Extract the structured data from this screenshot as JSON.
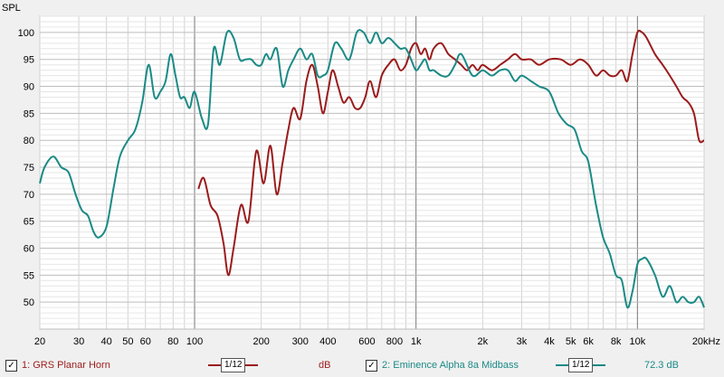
{
  "chart_data": {
    "type": "line",
    "ylabel": "SPL",
    "xscale": "log",
    "xlim": [
      20,
      20000
    ],
    "ylim": [
      45,
      103
    ],
    "grid": true,
    "yticks": [
      50,
      55,
      60,
      65,
      70,
      75,
      80,
      85,
      90,
      95,
      100
    ],
    "xticks": [
      20,
      30,
      40,
      50,
      60,
      80,
      100,
      200,
      300,
      400,
      600,
      800,
      1000,
      2000,
      3000,
      4000,
      5000,
      6000,
      8000,
      10000,
      20000
    ],
    "xtick_labels": [
      "20",
      "30",
      "40",
      "50",
      "60",
      "80",
      "100",
      "200",
      "300",
      "400",
      "600",
      "800",
      "1k",
      "2k",
      "3k",
      "4k",
      "5k",
      "6k",
      "8k",
      "10k",
      "20kHz"
    ],
    "series": [
      {
        "name": "1: GRS Planar Horn",
        "color": "#9b1b1b",
        "x": [
          104,
          110,
          118,
          127,
          135,
          142,
          150,
          162,
          175,
          190,
          205,
          220,
          235,
          250,
          265,
          280,
          300,
          320,
          340,
          360,
          380,
          400,
          420,
          445,
          470,
          500,
          530,
          560,
          590,
          620,
          660,
          700,
          750,
          800,
          850,
          900,
          950,
          1000,
          1050,
          1100,
          1150,
          1200,
          1300,
          1400,
          1500,
          1600,
          1700,
          1800,
          1900,
          2000,
          2200,
          2400,
          2600,
          2800,
          3000,
          3300,
          3600,
          4000,
          4500,
          5000,
          5500,
          6000,
          6500,
          7000,
          7500,
          8000,
          8500,
          9000,
          9500,
          10000,
          10500,
          11000,
          12000,
          13000,
          14000,
          15000,
          16000,
          17000,
          18000,
          19000,
          20000
        ],
        "y": [
          71,
          73,
          68,
          66,
          61,
          55,
          60,
          68,
          65,
          78,
          72,
          79,
          70,
          76,
          82,
          86,
          84,
          91,
          94,
          90,
          85,
          89,
          93,
          90,
          87,
          88,
          86,
          86,
          88,
          91,
          88,
          92,
          94,
          95,
          93,
          94,
          97,
          98,
          96,
          97,
          95,
          97,
          98,
          96,
          95,
          94,
          93,
          94,
          93,
          94,
          93,
          94,
          95,
          96,
          95,
          95,
          94,
          95,
          95,
          94,
          95,
          94,
          92,
          93,
          92,
          92,
          93,
          91,
          96,
          100,
          100,
          99,
          96,
          94,
          92,
          90,
          88,
          87,
          85,
          80,
          80
        ]
      },
      {
        "name": "2: Eminence Alpha 8a Midbass",
        "color": "#1a8a86",
        "x": [
          20,
          21,
          23,
          25,
          27,
          29,
          31,
          33,
          35,
          37,
          40,
          43,
          46,
          50,
          54,
          58,
          62,
          66,
          70,
          74,
          78,
          82,
          86,
          90,
          95,
          100,
          108,
          115,
          122,
          130,
          140,
          150,
          160,
          170,
          180,
          190,
          200,
          210,
          220,
          235,
          250,
          265,
          280,
          300,
          320,
          340,
          360,
          380,
          400,
          430,
          460,
          500,
          540,
          580,
          620,
          660,
          700,
          750,
          800,
          850,
          900,
          950,
          1000,
          1050,
          1100,
          1150,
          1200,
          1300,
          1400,
          1500,
          1600,
          1800,
          2000,
          2200,
          2400,
          2600,
          2800,
          3000,
          3300,
          3600,
          4000,
          4400,
          4800,
          5200,
          5600,
          6000,
          6500,
          7000,
          7500,
          8000,
          8500,
          9000,
          9500,
          10000,
          10500,
          11000,
          12000,
          13000,
          14000,
          15000,
          16000,
          17000,
          18000,
          19000,
          20000
        ],
        "y": [
          72,
          75,
          77,
          75,
          74,
          70,
          67,
          66,
          63,
          62,
          64,
          71,
          77,
          80,
          82,
          87,
          94,
          88,
          89,
          91,
          96,
          92,
          88,
          88,
          86,
          89,
          84,
          83,
          97,
          94,
          100,
          99,
          95,
          95,
          95,
          94,
          94,
          96,
          95,
          97,
          90,
          93,
          95,
          97,
          95,
          96,
          92,
          92,
          93,
          98,
          97,
          95,
          100,
          100,
          98,
          100,
          98,
          99,
          98,
          97,
          97,
          95,
          93,
          94,
          95,
          93,
          93,
          92,
          92,
          94,
          96,
          92,
          93,
          92,
          93,
          93,
          91,
          92,
          91,
          90,
          89,
          85,
          83,
          82,
          78,
          76,
          68,
          62,
          59,
          55,
          54,
          49,
          52,
          57,
          58,
          58,
          55,
          51,
          53,
          50,
          51,
          50,
          50,
          51,
          49
        ]
      }
    ]
  },
  "legend": {
    "series1_label": "1: GRS Planar Horn",
    "series1_smoothing": "1/12",
    "series1_unit": "dB",
    "series2_label": "2: Eminence Alpha 8a Midbass",
    "series2_smoothing": "1/12",
    "series2_value": "72.3 dB"
  }
}
